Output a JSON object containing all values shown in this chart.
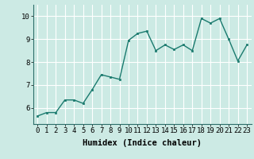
{
  "x": [
    0,
    1,
    2,
    3,
    4,
    5,
    6,
    7,
    8,
    9,
    10,
    11,
    12,
    13,
    14,
    15,
    16,
    17,
    18,
    19,
    20,
    21,
    22,
    23
  ],
  "y": [
    5.65,
    5.8,
    5.8,
    6.35,
    6.35,
    6.2,
    6.8,
    7.45,
    7.35,
    7.25,
    8.95,
    9.25,
    9.35,
    8.5,
    8.75,
    8.55,
    8.75,
    8.5,
    9.9,
    9.7,
    9.9,
    9.0,
    8.05,
    8.75
  ],
  "line_color": "#1a7a6e",
  "marker": "s",
  "marker_size": 2.0,
  "linewidth": 1.0,
  "xlabel": "Humidex (Indice chaleur)",
  "ylim": [
    5.3,
    10.5
  ],
  "xlim": [
    -0.5,
    23.5
  ],
  "yticks": [
    6,
    7,
    8,
    9,
    10
  ],
  "xtick_labels": [
    "0",
    "1",
    "2",
    "3",
    "4",
    "5",
    "6",
    "7",
    "8",
    "9",
    "10",
    "11",
    "12",
    "13",
    "14",
    "15",
    "16",
    "17",
    "18",
    "19",
    "20",
    "21",
    "22",
    "23"
  ],
  "bg_color": "#cceae4",
  "grid_color": "#ffffff",
  "xlabel_fontsize": 7.5,
  "tick_fontsize": 6.5
}
